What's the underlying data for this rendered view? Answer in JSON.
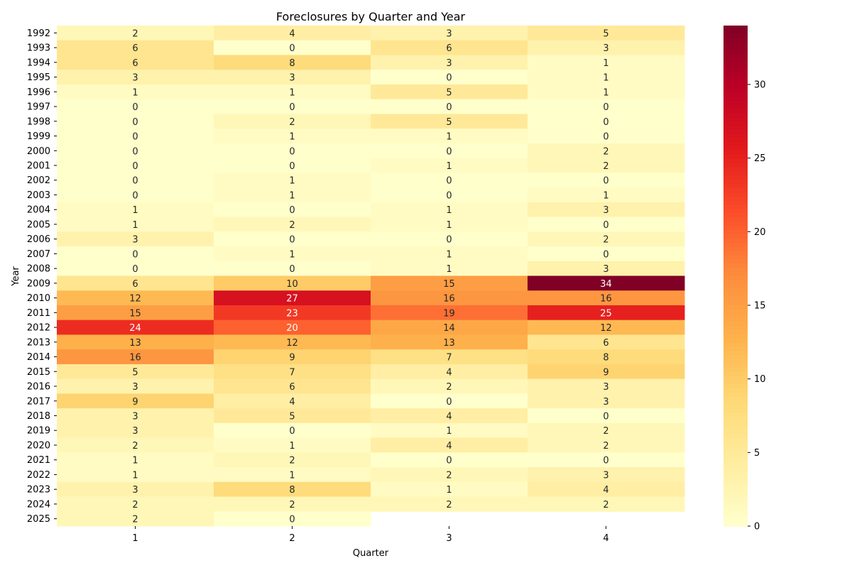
{
  "chart_data": {
    "type": "heatmap",
    "title": "Foreclosures by Quarter and Year",
    "xlabel": "Quarter",
    "ylabel": "Year",
    "x_categories": [
      "1",
      "2",
      "3",
      "4"
    ],
    "y_categories": [
      "1992",
      "1993",
      "1994",
      "1995",
      "1996",
      "1997",
      "1998",
      "1999",
      "2000",
      "2001",
      "2002",
      "2003",
      "2004",
      "2005",
      "2006",
      "2007",
      "2008",
      "2009",
      "2010",
      "2011",
      "2012",
      "2013",
      "2014",
      "2015",
      "2016",
      "2017",
      "2018",
      "2019",
      "2020",
      "2021",
      "2022",
      "2023",
      "2024",
      "2025"
    ],
    "values": [
      [
        2,
        4,
        3,
        5
      ],
      [
        6,
        0,
        6,
        3
      ],
      [
        6,
        8,
        3,
        1
      ],
      [
        3,
        3,
        0,
        1
      ],
      [
        1,
        1,
        5,
        1
      ],
      [
        0,
        0,
        0,
        0
      ],
      [
        0,
        2,
        5,
        0
      ],
      [
        0,
        1,
        1,
        0
      ],
      [
        0,
        0,
        0,
        2
      ],
      [
        0,
        0,
        1,
        2
      ],
      [
        0,
        1,
        0,
        0
      ],
      [
        0,
        1,
        0,
        1
      ],
      [
        1,
        0,
        1,
        3
      ],
      [
        1,
        2,
        1,
        0
      ],
      [
        3,
        0,
        0,
        2
      ],
      [
        0,
        1,
        1,
        0
      ],
      [
        0,
        0,
        1,
        3
      ],
      [
        6,
        10,
        15,
        34
      ],
      [
        12,
        27,
        16,
        16
      ],
      [
        15,
        23,
        19,
        25
      ],
      [
        24,
        20,
        14,
        12
      ],
      [
        13,
        12,
        13,
        6
      ],
      [
        16,
        9,
        7,
        8
      ],
      [
        5,
        7,
        4,
        9
      ],
      [
        3,
        6,
        2,
        3
      ],
      [
        9,
        4,
        0,
        3
      ],
      [
        3,
        5,
        4,
        0
      ],
      [
        3,
        0,
        1,
        2
      ],
      [
        2,
        1,
        4,
        2
      ],
      [
        1,
        2,
        0,
        0
      ],
      [
        1,
        1,
        2,
        3
      ],
      [
        3,
        8,
        1,
        4
      ],
      [
        2,
        2,
        2,
        2
      ],
      [
        2,
        0,
        null,
        null
      ]
    ],
    "color_range": [
      0,
      34
    ],
    "colormap": "YlOrRd",
    "colorbar_ticks": [
      0,
      5,
      10,
      15,
      20,
      25,
      30
    ],
    "annotations": true
  }
}
